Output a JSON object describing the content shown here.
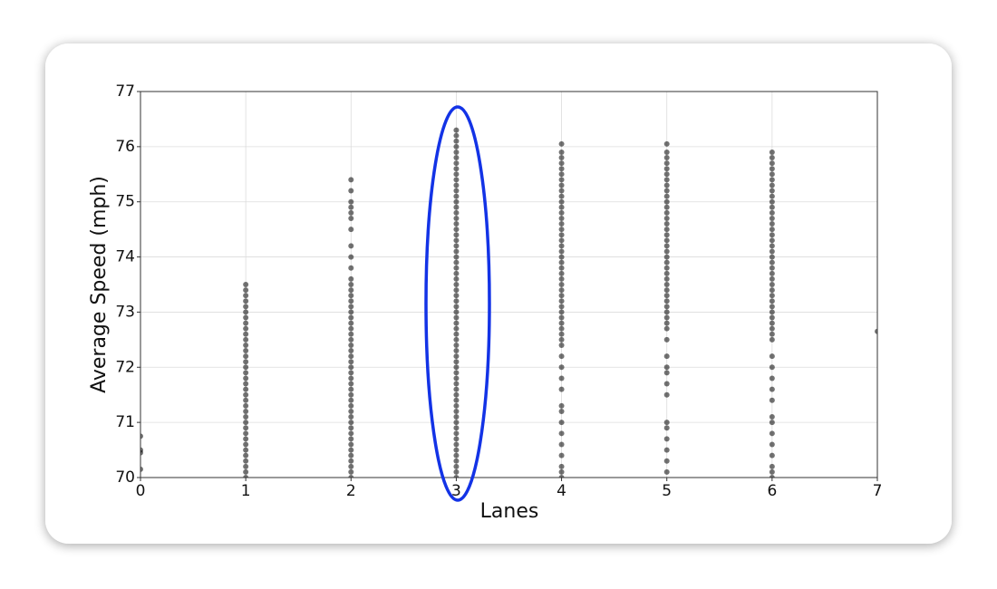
{
  "chart_data": {
    "type": "scatter",
    "xlabel": "Lanes",
    "ylabel": "Average Speed (mph)",
    "color": "#000000",
    "grid": true,
    "xlim": [
      0,
      7
    ],
    "ylim": [
      70,
      77
    ],
    "xticks": [
      0,
      1,
      2,
      3,
      4,
      5,
      6,
      7
    ],
    "yticks": [
      70,
      71,
      72,
      73,
      74,
      75,
      76,
      77
    ],
    "series": [
      {
        "x": 0,
        "values": [
          70.15,
          70.45,
          70.5,
          70.75
        ]
      },
      {
        "x": 1,
        "values": [
          70.0,
          70.1,
          70.2,
          70.3,
          70.4,
          70.5,
          70.6,
          70.7,
          70.8,
          70.9,
          71.0,
          71.1,
          71.2,
          71.3,
          71.4,
          71.5,
          71.6,
          71.7,
          71.8,
          71.9,
          72.0,
          72.1,
          72.2,
          72.3,
          72.4,
          72.5,
          72.6,
          72.7,
          72.8,
          72.9,
          73.0,
          73.1,
          73.2,
          73.3,
          73.4,
          73.5
        ]
      },
      {
        "x": 2,
        "values": [
          70.0,
          70.1,
          70.2,
          70.3,
          70.4,
          70.5,
          70.6,
          70.7,
          70.8,
          70.9,
          71.0,
          71.1,
          71.2,
          71.3,
          71.4,
          71.5,
          71.6,
          71.7,
          71.8,
          71.9,
          72.0,
          72.1,
          72.2,
          72.3,
          72.4,
          72.5,
          72.6,
          72.7,
          72.8,
          72.9,
          73.0,
          73.1,
          73.2,
          73.3,
          73.4,
          73.5,
          73.6,
          73.8,
          74.0,
          74.2,
          74.5,
          74.7,
          74.8,
          74.9,
          75.0,
          75.2,
          75.4
        ]
      },
      {
        "x": 3,
        "values": [
          70.0,
          70.1,
          70.2,
          70.3,
          70.4,
          70.5,
          70.6,
          70.7,
          70.8,
          70.9,
          71.0,
          71.1,
          71.2,
          71.3,
          71.4,
          71.5,
          71.6,
          71.7,
          71.8,
          71.9,
          72.0,
          72.1,
          72.2,
          72.3,
          72.4,
          72.5,
          72.6,
          72.7,
          72.8,
          72.9,
          73.0,
          73.1,
          73.2,
          73.3,
          73.4,
          73.5,
          73.6,
          73.7,
          73.8,
          73.9,
          74.0,
          74.1,
          74.2,
          74.3,
          74.4,
          74.5,
          74.6,
          74.7,
          74.8,
          74.9,
          75.0,
          75.1,
          75.2,
          75.3,
          75.4,
          75.5,
          75.6,
          75.7,
          75.8,
          75.9,
          76.0,
          76.1,
          76.2,
          76.3
        ]
      },
      {
        "x": 4,
        "values": [
          70.0,
          70.1,
          70.2,
          70.4,
          70.6,
          70.8,
          71.0,
          71.2,
          71.3,
          71.6,
          71.8,
          72.0,
          72.2,
          72.4,
          72.5,
          72.6,
          72.7,
          72.8,
          72.9,
          73.0,
          73.1,
          73.2,
          73.3,
          73.4,
          73.5,
          73.6,
          73.7,
          73.8,
          73.9,
          74.0,
          74.1,
          74.2,
          74.3,
          74.4,
          74.5,
          74.6,
          74.7,
          74.8,
          74.9,
          75.0,
          75.1,
          75.2,
          75.3,
          75.4,
          75.5,
          75.6,
          75.7,
          75.8,
          75.9,
          76.05
        ]
      },
      {
        "x": 5,
        "values": [
          70.1,
          70.3,
          70.5,
          70.7,
          70.9,
          71.0,
          71.5,
          71.7,
          71.9,
          72.0,
          72.2,
          72.5,
          72.7,
          72.8,
          72.9,
          73.0,
          73.1,
          73.2,
          73.3,
          73.4,
          73.5,
          73.6,
          73.7,
          73.8,
          73.9,
          74.0,
          74.1,
          74.2,
          74.3,
          74.4,
          74.5,
          74.6,
          74.7,
          74.8,
          74.9,
          75.0,
          75.1,
          75.2,
          75.3,
          75.4,
          75.5,
          75.6,
          75.7,
          75.8,
          75.9,
          76.05
        ]
      },
      {
        "x": 6,
        "values": [
          70.0,
          70.1,
          70.2,
          70.4,
          70.6,
          70.8,
          71.0,
          71.1,
          71.4,
          71.6,
          71.8,
          72.0,
          72.2,
          72.5,
          72.6,
          72.7,
          72.8,
          72.9,
          73.0,
          73.1,
          73.2,
          73.3,
          73.4,
          73.5,
          73.6,
          73.7,
          73.8,
          73.9,
          74.0,
          74.1,
          74.2,
          74.3,
          74.4,
          74.5,
          74.6,
          74.7,
          74.8,
          74.9,
          75.0,
          75.1,
          75.2,
          75.3,
          75.4,
          75.5,
          75.6,
          75.7,
          75.8,
          75.9
        ]
      },
      {
        "x": 7,
        "values": [
          72.65
        ]
      }
    ]
  }
}
